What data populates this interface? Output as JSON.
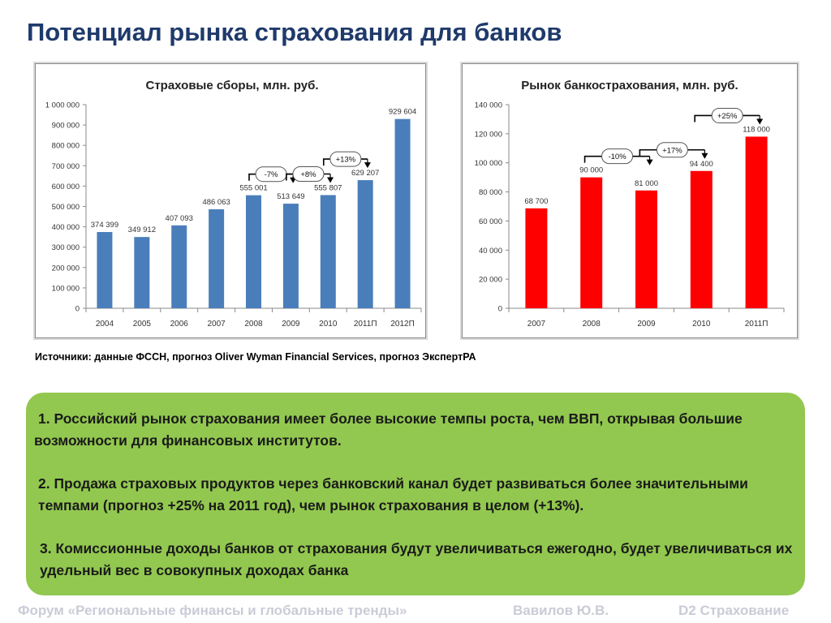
{
  "title": "Потенциал рынка страхования для банков",
  "sources": "Источники: данные ФССН, прогноз Oliver Wyman Financial Services, прогноз ЭкспертРА",
  "points": [
    "1. Российский рынок страхования имеет более высокие темпы роста, чем ВВП, открывая большие возможности для финансовых институтов.",
    "2. Продажа страховых продуктов через банковский канал будет развиваться более значительными темпами (прогноз +25%  на 2011 год), чем рынок страхования в целом (+13%).",
    "3. Комиссионные доходы банков от страхования будут увеличиваться ежегодно, будет увеличиваться их удельный вес в совокупных доходах банка"
  ],
  "footer": {
    "forum": "Форум «Региональные финансы и глобальные тренды»",
    "author": "Вавилов Ю.В.",
    "section": "D2 Страхование"
  },
  "colors": {
    "title": "#1f3a6b",
    "bar_left": "#4a7ebb",
    "bar_right": "#ff0000",
    "panel": "#92c84f"
  },
  "chart_data": [
    {
      "type": "bar",
      "title": "Страховые сборы, млн. руб.",
      "categories": [
        "2004",
        "2005",
        "2006",
        "2007",
        "2008",
        "2009",
        "2010",
        "2011П",
        "2012П"
      ],
      "values": [
        374399,
        349912,
        407093,
        486063,
        555001,
        513649,
        555807,
        629207,
        929604
      ],
      "data_labels": [
        "374 399",
        "349 912",
        "407 093",
        "486 063",
        "555 001",
        "513 649",
        "555 807",
        "629 207",
        "929 604"
      ],
      "ylim": [
        0,
        1000000
      ],
      "yticks": [
        0,
        100000,
        200000,
        300000,
        400000,
        500000,
        600000,
        700000,
        800000,
        900000,
        1000000
      ],
      "ytick_labels": [
        "0",
        "100 000",
        "200 000",
        "300 000",
        "400 000",
        "500 000",
        "600 000",
        "700 000",
        "800 000",
        "900 000",
        "1 000 000"
      ],
      "grid": false,
      "annotations": [
        {
          "text": "-7%",
          "from": 4,
          "to": 5
        },
        {
          "text": "+8%",
          "from": 5,
          "to": 6
        },
        {
          "text": "+13%",
          "from": 6,
          "to": 7
        }
      ]
    },
    {
      "type": "bar",
      "title": "Рынок банкострахования, млн. руб.",
      "categories": [
        "2007",
        "2008",
        "2009",
        "2010",
        "2011П"
      ],
      "values": [
        68700,
        90000,
        81000,
        94400,
        118000
      ],
      "data_labels": [
        "68 700",
        "90 000",
        "81 000",
        "94 400",
        "118 000"
      ],
      "ylim": [
        0,
        140000
      ],
      "yticks": [
        0,
        20000,
        40000,
        60000,
        80000,
        100000,
        120000,
        140000
      ],
      "ytick_labels": [
        "0",
        "20 000",
        "40 000",
        "60 000",
        "80 000",
        "100 000",
        "120 000",
        "140 000"
      ],
      "grid": false,
      "annotations": [
        {
          "text": "-10%",
          "from": 1,
          "to": 2
        },
        {
          "text": "+17%",
          "from": 2,
          "to": 3
        },
        {
          "text": "+25%",
          "from": 3,
          "to": 4
        }
      ]
    }
  ]
}
